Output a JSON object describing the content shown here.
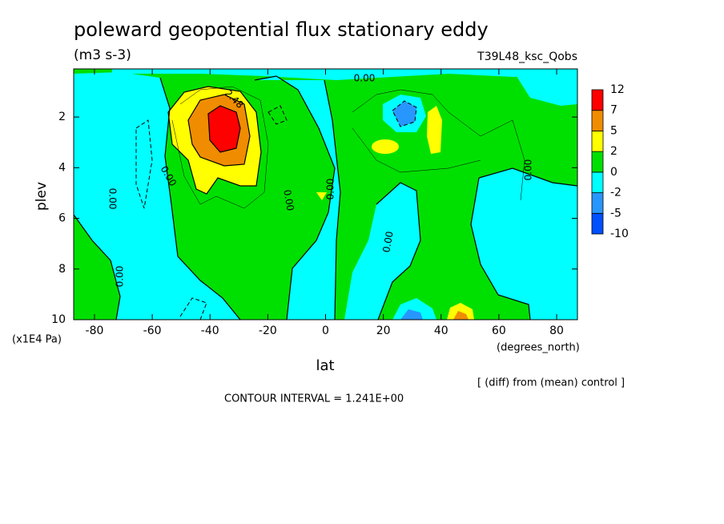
{
  "chart_data": {
    "type": "contour",
    "title": "poleward geopotential flux stationary eddy",
    "subtitle": "(m3 s-3)",
    "dataset": "T39L48_ksc_Qobs",
    "x_label": "lat",
    "x_units": "(degrees_north)",
    "y_label": "plev",
    "y_units": "(x1E4 Pa)",
    "note": "[ (diff) from (mean) control ]",
    "contour_interval": "CONTOUR INTERVAL = 1.241E+00",
    "xlim": [
      -87.2,
      87.2
    ],
    "xticks": [
      -80,
      -60,
      -40,
      -20,
      0,
      20,
      40,
      60,
      80
    ],
    "ylim": [
      0.1,
      10
    ],
    "yticks": [
      2,
      4,
      6,
      8,
      10
    ],
    "y_inverted": true,
    "levels": [
      -10,
      -5,
      -2,
      0,
      2,
      5,
      7,
      12
    ],
    "colors": [
      "#0050ff",
      "#2896ff",
      "#00ffff",
      "#00e000",
      "#ffff00",
      "#f08c00",
      "#ff0000"
    ],
    "contour_labels": [
      "0.00",
      "2.48",
      "0.00",
      "0.00",
      "0.00",
      "0.00",
      "0.00",
      "0.00",
      "0.00"
    ]
  }
}
